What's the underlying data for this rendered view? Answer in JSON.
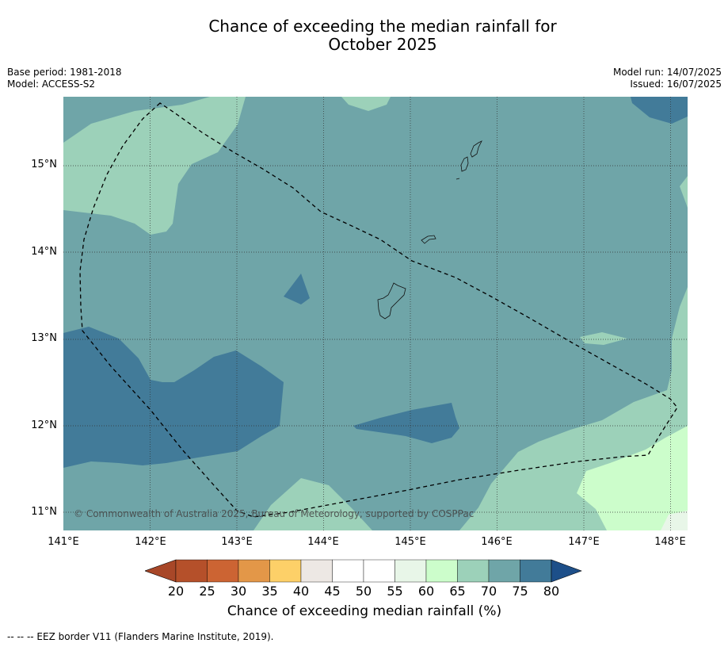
{
  "title_line1": "Chance of exceeding the median rainfall for",
  "title_line2": "October 2025",
  "meta_left": {
    "base_period": "Base period: 1981-2018",
    "model": "Model: ACCESS-S2"
  },
  "meta_right": {
    "model_run": "Model run: 14/07/2025",
    "issued": "Issued: 16/07/2025"
  },
  "map": {
    "lat_labels": [
      "15°N",
      "14°N",
      "13°N",
      "12°N",
      "11°N"
    ],
    "lon_labels": [
      "141°E",
      "142°E",
      "143°E",
      "144°E",
      "145°E",
      "146°E",
      "147°E",
      "148°E"
    ],
    "copyright": "© Commonwealth of Australia 2025, Bureau of Meteorology, supported by COSPPac",
    "fill_colors": {
      "70-75": "#6fa5a8",
      "65-70": "#9cd1b9",
      "75-80": "#427b99",
      "60-65": "#ccfdcb",
      "55-60": "#e8f6e8",
      "gridline": "#333333",
      "eez": "#000000"
    }
  },
  "colorbar": {
    "label": "Chance of exceeding median rainfall (%)",
    "ticks": [
      "20",
      "25",
      "30",
      "35",
      "40",
      "45",
      "50",
      "55",
      "60",
      "65",
      "70",
      "75",
      "80"
    ],
    "colors": [
      "#a84728",
      "#b5502a",
      "#cc6433",
      "#e39748",
      "#fdd068",
      "#ede8e4",
      "#ffffff",
      "#ffffff",
      "#e8f6e8",
      "#ccfdcb",
      "#9cd1b9",
      "#6fa5a8",
      "#427b99",
      "#1d4f89"
    ]
  },
  "footer": "--  --  -- EEZ border V11 (Flanders Marine Institute, 2019)."
}
